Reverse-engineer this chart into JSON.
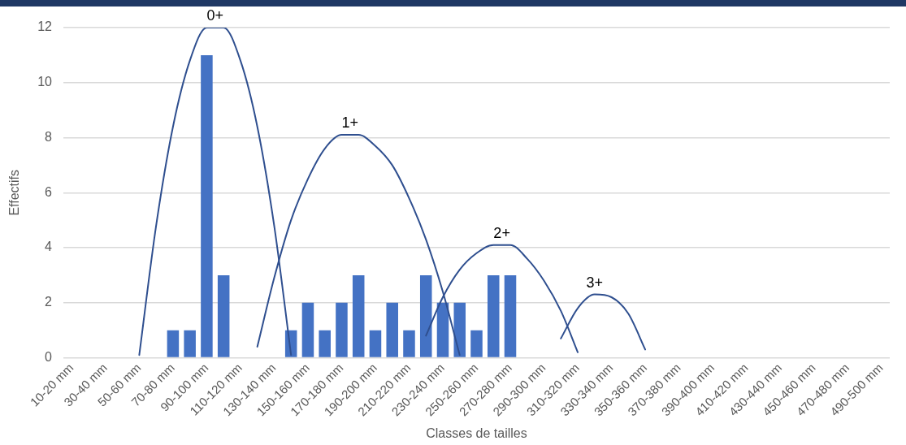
{
  "chart_data": {
    "type": "bar",
    "xlabel": "Classes de tailles",
    "ylabel": "Effectifs",
    "categories": [
      "10-20 mm",
      null,
      "30-40 mm",
      null,
      "50-60 mm",
      null,
      "70-80 mm",
      null,
      "90-100 mm",
      null,
      "110-120 mm",
      null,
      "130-140 mm",
      null,
      "150-160 mm",
      null,
      "170-180 mm",
      null,
      "190-200 mm",
      null,
      "210-220 mm",
      null,
      "230-240 mm",
      null,
      "250-260 mm",
      null,
      "270-280 mm",
      null,
      "290-300 mm",
      null,
      "310-320 mm",
      null,
      "330-340 mm",
      null,
      "350-360 mm",
      null,
      "370-380 mm",
      null,
      "390-400 mm",
      null,
      "410-420 mm",
      null,
      "430-440 mm",
      null,
      "450-460 mm",
      null,
      "470-480 mm",
      null,
      "490-500 mm"
    ],
    "series": [
      {
        "color": "#4472c4",
        "values": [
          0,
          0,
          0,
          0,
          0,
          0,
          1,
          1,
          11,
          3,
          0,
          0,
          0,
          1,
          2,
          1,
          2,
          3,
          1,
          2,
          1,
          3,
          2,
          2,
          1,
          3,
          3,
          0,
          0,
          0,
          0,
          0,
          0,
          0,
          0,
          0,
          0,
          0,
          0,
          0,
          0,
          0,
          0,
          0,
          0,
          0,
          0,
          0,
          0
        ]
      },
      {
        "type": "line",
        "name": "0+",
        "color": "#2f4f8f",
        "values": [
          null,
          null,
          null,
          null,
          0.1,
          4.8,
          8.4,
          10.8,
          12,
          12,
          10.8,
          8.4,
          4.8,
          0.1,
          null,
          null,
          null,
          null,
          null,
          null,
          null,
          null,
          null,
          null,
          null,
          null,
          null,
          null,
          null,
          null,
          null,
          null,
          null,
          null,
          null,
          null,
          null,
          null,
          null,
          null,
          null,
          null,
          null,
          null,
          null,
          null,
          null,
          null,
          null
        ]
      },
      {
        "type": "line",
        "name": "1+",
        "color": "#2f4f8f",
        "values": [
          null,
          null,
          null,
          null,
          null,
          null,
          null,
          null,
          null,
          null,
          null,
          0.4,
          2.9,
          5.0,
          6.5,
          7.6,
          8.1,
          8.1,
          7.7,
          7.0,
          5.8,
          4.3,
          2.4,
          0.1,
          null,
          null,
          null,
          null,
          null,
          null,
          null,
          null,
          null,
          null,
          null,
          null,
          null,
          null,
          null,
          null,
          null,
          null,
          null,
          null,
          null,
          null,
          null,
          null,
          null
        ]
      },
      {
        "type": "line",
        "name": "2+",
        "color": "#2f4f8f",
        "values": [
          null,
          null,
          null,
          null,
          null,
          null,
          null,
          null,
          null,
          null,
          null,
          null,
          null,
          null,
          null,
          null,
          null,
          null,
          null,
          null,
          null,
          0.8,
          2.2,
          3.2,
          3.8,
          4.1,
          4.1,
          3.6,
          2.8,
          1.7,
          0.2,
          null,
          null,
          null,
          null,
          null,
          null,
          null,
          null,
          null,
          null,
          null,
          null,
          null,
          null,
          null,
          null,
          null,
          null
        ]
      },
      {
        "type": "line",
        "name": "3+",
        "color": "#2f4f8f",
        "values": [
          null,
          null,
          null,
          null,
          null,
          null,
          null,
          null,
          null,
          null,
          null,
          null,
          null,
          null,
          null,
          null,
          null,
          null,
          null,
          null,
          null,
          null,
          null,
          null,
          null,
          null,
          null,
          null,
          null,
          0.7,
          1.8,
          2.3,
          2.2,
          1.6,
          0.3,
          null,
          null,
          null,
          null,
          null,
          null,
          null,
          null,
          null,
          null,
          null,
          null,
          null,
          null
        ]
      }
    ],
    "ylim": [
      0,
      12
    ],
    "yticks": [
      0,
      2,
      4,
      6,
      8,
      10,
      12
    ],
    "grid": "y",
    "legend": false,
    "marker": "none",
    "line_style": "solid"
  }
}
